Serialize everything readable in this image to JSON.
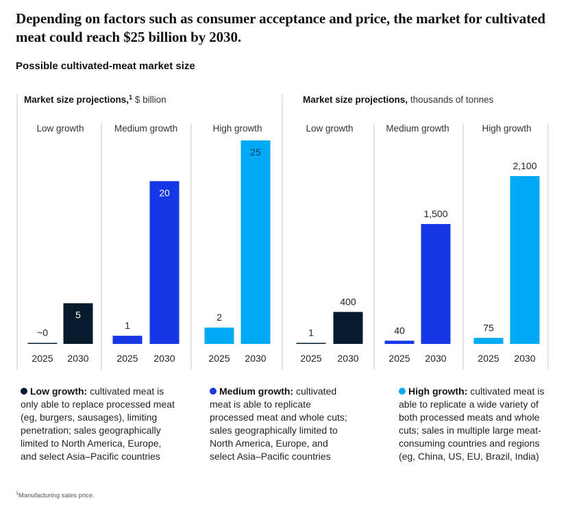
{
  "headline": "Depending on factors such as consumer acceptance and price, the market for cultivated meat could reach $25 billion by 2030.",
  "subtitle": "Possible cultivated-meat market size",
  "colors": {
    "low": "#061b2e",
    "medium": "#1537e6",
    "high": "#00a9f4",
    "divider": "#c8c8c8",
    "text": "#222222"
  },
  "chart_data": [
    {
      "type": "bar",
      "title_bold": "Market size projections,",
      "title_sup": "1",
      "title_rest": " $ billion",
      "unit": "$ billion",
      "ylim": [
        0,
        25
      ],
      "groups": [
        {
          "name": "Low growth",
          "key": "low",
          "categories": [
            "2025",
            "2030"
          ],
          "values": [
            0,
            5
          ],
          "labels": [
            "~0",
            "5"
          ],
          "label_inside": [
            false,
            true
          ]
        },
        {
          "name": "Medium growth",
          "key": "medium",
          "categories": [
            "2025",
            "2030"
          ],
          "values": [
            1,
            20
          ],
          "labels": [
            "1",
            "20"
          ],
          "label_inside": [
            false,
            true
          ]
        },
        {
          "name": "High growth",
          "key": "high",
          "categories": [
            "2025",
            "2030"
          ],
          "values": [
            2,
            25
          ],
          "labels": [
            "2",
            "25"
          ],
          "label_inside": [
            false,
            true
          ]
        }
      ]
    },
    {
      "type": "bar",
      "title_bold": "Market size projections,",
      "title_sup": "",
      "title_rest": " thousands of tonnes",
      "unit": "thousands of tonnes",
      "ylim": [
        0,
        2100
      ],
      "groups": [
        {
          "name": "Low growth",
          "key": "low",
          "categories": [
            "2025",
            "2030"
          ],
          "values": [
            1,
            400
          ],
          "labels": [
            "1",
            "400"
          ],
          "label_inside": [
            false,
            false
          ]
        },
        {
          "name": "Medium growth",
          "key": "medium",
          "categories": [
            "2025",
            "2030"
          ],
          "values": [
            40,
            1500
          ],
          "labels": [
            "40",
            "1,500"
          ],
          "label_inside": [
            false,
            false
          ]
        },
        {
          "name": "High growth",
          "key": "high",
          "categories": [
            "2025",
            "2030"
          ],
          "values": [
            75,
            2100
          ],
          "labels": [
            "75",
            "2,100"
          ],
          "label_inside": [
            false,
            false
          ]
        }
      ]
    }
  ],
  "legend": [
    {
      "key": "low",
      "label": "Low growth:",
      "text": " cultivated meat is only able to replace processed meat (eg, burgers, sausages), limiting penetration; sales geographically limited to North America, Europe, and select Asia–Pacific countries"
    },
    {
      "key": "medium",
      "label": "Medium growth:",
      "text": " cultivated meat is able to replicate processed meat and whole cuts; sales geographically limited to North America, Europe, and select Asia–Pacific countries"
    },
    {
      "key": "high",
      "label": "High growth:",
      "text": " cultivated meat is able to replicate a wide variety of both processed meats and whole cuts; sales in multiple large meat-consuming countries and regions (eg, China, US, EU, Brazil, India)"
    }
  ],
  "footnote": {
    "sup": "1",
    "text": "Manufacturing sales price."
  }
}
